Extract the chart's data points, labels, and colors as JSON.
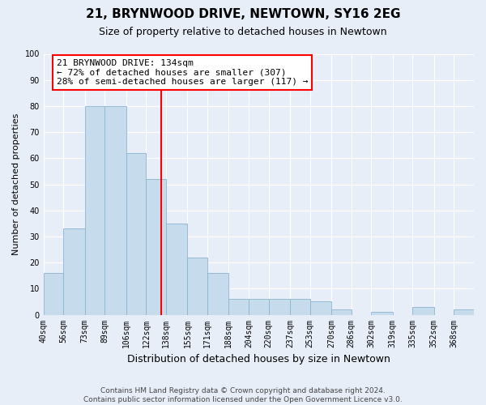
{
  "title": "21, BRYNWOOD DRIVE, NEWTOWN, SY16 2EG",
  "subtitle": "Size of property relative to detached houses in Newtown",
  "xlabel": "Distribution of detached houses by size in Newtown",
  "ylabel": "Number of detached properties",
  "bin_labels": [
    "40sqm",
    "56sqm",
    "73sqm",
    "89sqm",
    "106sqm",
    "122sqm",
    "138sqm",
    "155sqm",
    "171sqm",
    "188sqm",
    "204sqm",
    "220sqm",
    "237sqm",
    "253sqm",
    "270sqm",
    "286sqm",
    "302sqm",
    "319sqm",
    "335sqm",
    "352sqm",
    "368sqm"
  ],
  "bin_edges": [
    40,
    56,
    73,
    89,
    106,
    122,
    138,
    155,
    171,
    188,
    204,
    220,
    237,
    253,
    270,
    286,
    302,
    319,
    335,
    352,
    368
  ],
  "bar_heights": [
    16,
    33,
    80,
    80,
    62,
    52,
    35,
    22,
    16,
    6,
    6,
    6,
    6,
    5,
    2,
    0,
    1,
    0,
    3,
    0,
    2
  ],
  "bar_color": "#c6dcec",
  "bar_edge_color": "#8ab4d0",
  "property_line_x": 134,
  "property_line_color": "red",
  "annotation_title": "21 BRYNWOOD DRIVE: 134sqm",
  "annotation_line1": "← 72% of detached houses are smaller (307)",
  "annotation_line2": "28% of semi-detached houses are larger (117) →",
  "annotation_box_color": "white",
  "annotation_box_edge_color": "red",
  "ylim": [
    0,
    100
  ],
  "yticks": [
    0,
    10,
    20,
    30,
    40,
    50,
    60,
    70,
    80,
    90,
    100
  ],
  "footer_line1": "Contains HM Land Registry data © Crown copyright and database right 2024.",
  "footer_line2": "Contains public sector information licensed under the Open Government Licence v3.0.",
  "background_color": "#e8eef8",
  "grid_color": "white",
  "title_fontsize": 11,
  "subtitle_fontsize": 9,
  "ylabel_fontsize": 8,
  "xlabel_fontsize": 9,
  "tick_fontsize": 7,
  "annotation_fontsize": 8,
  "footer_fontsize": 6.5
}
